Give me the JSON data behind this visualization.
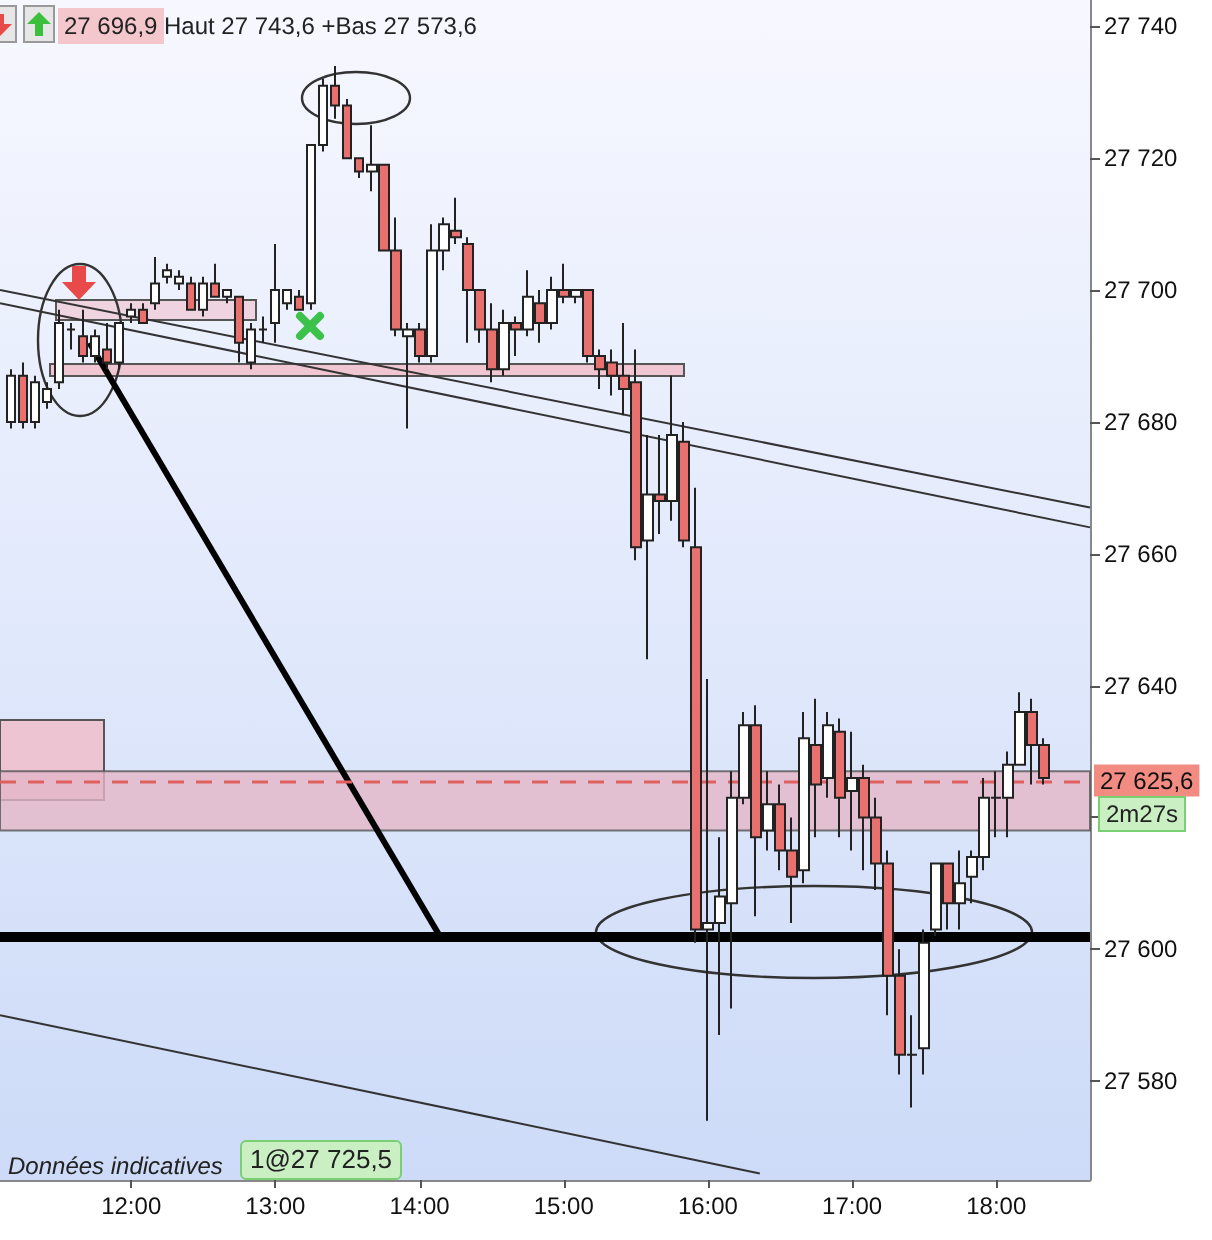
{
  "chart_data": {
    "type": "candlestick",
    "annotations": [
      "27 696,9",
      "Haut 27 743,6 +Bas 27 573,6",
      "Données indicatives",
      "1@27 725,5",
      "2m27s"
    ],
    "x": [
      11.1667,
      11.25,
      11.3333,
      11.4167,
      11.5,
      11.5833,
      11.6667,
      11.75,
      11.8333,
      11.9167,
      12,
      12.0833,
      12.1667,
      12.25,
      12.3333,
      12.4167,
      12.5,
      12.5833,
      12.6667,
      12.75,
      12.8333,
      12.9167,
      13,
      13.0833,
      13.1667,
      13.25,
      13.3333,
      13.4167,
      13.5,
      13.5833,
      13.6667,
      13.75,
      13.8333,
      13.9167,
      14,
      14.0833,
      14.1667,
      14.25,
      14.3333,
      14.4167,
      14.5,
      14.5833,
      14.6667,
      14.75,
      14.8333,
      14.9167,
      15,
      15.0833,
      15.1667,
      15.25,
      15.3333,
      15.4167,
      15.5,
      15.5833,
      15.6667,
      15.75,
      15.8333,
      15.9167,
      16,
      16.0833,
      16.1667,
      16.25,
      16.3333,
      16.4167,
      16.5,
      16.5833,
      16.6667,
      16.75,
      16.8333,
      16.9167,
      17,
      17.0833,
      17.1667,
      17.25,
      17.3333,
      17.4167,
      17.5,
      17.5833,
      17.6667,
      17.75,
      17.8333,
      17.9167,
      18,
      18.0833,
      18.1667,
      18.25,
      18.3333
    ],
    "ohlc": [
      [
        27680,
        27688,
        27679,
        27687
      ],
      [
        27687,
        27689,
        27679,
        27680
      ],
      [
        27680,
        27687,
        27679,
        27686
      ],
      [
        27683,
        27686,
        27682,
        27685
      ],
      [
        27686,
        27697,
        27685,
        27695
      ],
      [
        27694,
        27695,
        27691,
        27694
      ],
      [
        27693,
        27697,
        27689,
        27690
      ],
      [
        27690,
        27694,
        27689,
        27693
      ],
      [
        27691,
        27695,
        27688,
        27689
      ],
      [
        27689,
        27695,
        27688,
        27695
      ],
      [
        27696,
        27698,
        27695,
        27697
      ],
      [
        27697,
        27698,
        27695,
        27695
      ],
      [
        27698,
        27705,
        27697,
        27701
      ],
      [
        27702,
        27704,
        27701,
        27703
      ],
      [
        27701,
        27703,
        27700,
        27702
      ],
      [
        27701,
        27702,
        27697,
        27697
      ],
      [
        27697,
        27702,
        27696,
        27701
      ],
      [
        27701,
        27704,
        27699,
        27699
      ],
      [
        27699,
        27700,
        27698,
        27700
      ],
      [
        27699,
        27699,
        27689,
        27692
      ],
      [
        27689,
        27695,
        27688,
        27694
      ],
      [
        27694,
        27696,
        27692,
        27694
      ],
      [
        27695,
        27707,
        27692,
        27700
      ],
      [
        27698,
        27700,
        27697,
        27700
      ],
      [
        27699,
        27700,
        27697,
        27697
      ],
      [
        27698,
        27722,
        27697,
        27722
      ],
      [
        27722,
        27732,
        27721,
        27731
      ],
      [
        27731,
        27734,
        27726,
        27728
      ],
      [
        27728,
        27729,
        27720,
        27720
      ],
      [
        27720,
        27720,
        27717,
        27718
      ],
      [
        27718,
        27725,
        27715,
        27719
      ],
      [
        27719,
        27719,
        27706,
        27706
      ],
      [
        27706,
        27711,
        27693,
        27694
      ],
      [
        27693,
        27695,
        27679,
        27694
      ],
      [
        27694,
        27695,
        27689,
        27690
      ],
      [
        27690,
        27710,
        27689,
        27706
      ],
      [
        27706,
        27711,
        27703,
        27710
      ],
      [
        27709,
        27714,
        27707,
        27708
      ],
      [
        27707,
        27708,
        27692,
        27700
      ],
      [
        27700,
        27700,
        27692,
        27694
      ],
      [
        27694,
        27698,
        27686,
        27688
      ],
      [
        27688,
        27697,
        27687,
        27695
      ],
      [
        27695,
        27696,
        27690,
        27694
      ],
      [
        27694,
        27703,
        27693,
        27699
      ],
      [
        27698,
        27700,
        27692,
        27695
      ],
      [
        27695,
        27702,
        27694,
        27700
      ],
      [
        27700,
        27704,
        27698,
        27699
      ],
      [
        27699,
        27700,
        27698,
        27700
      ],
      [
        27700,
        27700,
        27689,
        27690
      ],
      [
        27690,
        27691,
        27685,
        27688
      ],
      [
        27689,
        27691,
        27684,
        27687
      ],
      [
        27687,
        27695,
        27681,
        27685
      ],
      [
        27686,
        27691,
        27659,
        27661
      ],
      [
        27662,
        27678,
        27644,
        27669
      ],
      [
        27669,
        27678,
        27663,
        27668
      ],
      [
        27668,
        27687,
        27665,
        27678
      ],
      [
        27677,
        27680,
        27661,
        27662
      ],
      [
        27661,
        27670,
        27601,
        27603
      ],
      [
        27603,
        27641,
        27574,
        27604
      ],
      [
        27604,
        27617,
        27587,
        27608
      ],
      [
        27607,
        27627,
        27591,
        27623
      ],
      [
        27623,
        27636,
        27622,
        27634
      ],
      [
        27634,
        27637,
        27605,
        27617
      ],
      [
        27618,
        27627,
        27615,
        27622
      ],
      [
        27622,
        27625,
        27612,
        27615
      ],
      [
        27615,
        27620,
        27604,
        27611
      ],
      [
        27612,
        27636,
        27610,
        27632
      ],
      [
        27631,
        27638,
        27617,
        27625
      ],
      [
        27626,
        27636,
        27623,
        27634
      ],
      [
        27633,
        27635,
        27617,
        27623
      ],
      [
        27624,
        27633,
        27615,
        27626
      ],
      [
        27626,
        27628,
        27612,
        27620
      ],
      [
        27620,
        27623,
        27609,
        27613
      ],
      [
        27613,
        27615,
        27590,
        27596
      ],
      [
        27596,
        27600,
        27581,
        27584
      ],
      [
        27584,
        27590,
        27576,
        27584
      ],
      [
        27585,
        27603,
        27581,
        27601
      ],
      [
        27603,
        27613,
        27602,
        27613
      ],
      [
        27613,
        27613,
        27603,
        27607
      ],
      [
        27607,
        27615,
        27603,
        27610
      ],
      [
        27611,
        27615,
        27607,
        27614
      ],
      [
        27614,
        27626,
        27612,
        27623
      ],
      [
        27623,
        27627,
        27617,
        27623
      ],
      [
        27623,
        27630,
        27617,
        27628
      ],
      [
        27628,
        27639,
        27628,
        27636
      ],
      [
        27636,
        27638,
        27625,
        27631
      ],
      [
        27631,
        27632,
        27625,
        27626
      ]
    ],
    "colors": [
      "#ffffff",
      "#e8706f",
      "#ffffff",
      "#ffffff",
      "#ffffff",
      "#222222",
      "#e8706f",
      "#ffffff",
      "#e8706f",
      "#ffffff",
      "#ffffff",
      "#e8706f",
      "#ffffff",
      "#ffffff",
      "#ffffff",
      "#e8706f",
      "#ffffff",
      "#e8706f",
      "#ffffff",
      "#e8706f",
      "#ffffff",
      "#222222",
      "#ffffff",
      "#ffffff",
      "#e8706f",
      "#ffffff",
      "#ffffff",
      "#e8706f",
      "#e8706f",
      "#e8706f",
      "#ffffff",
      "#e8706f",
      "#e8706f",
      "#ffffff",
      "#e8706f",
      "#ffffff",
      "#ffffff",
      "#e8706f",
      "#e8706f",
      "#e8706f",
      "#e8706f",
      "#ffffff",
      "#e8706f",
      "#ffffff",
      "#e8706f",
      "#ffffff",
      "#e8706f",
      "#ffffff",
      "#e8706f",
      "#e8706f",
      "#e8706f",
      "#e8706f",
      "#e8706f",
      "#ffffff",
      "#e8706f",
      "#ffffff",
      "#e8706f",
      "#e8706f",
      "#ffffff",
      "#ffffff",
      "#ffffff",
      "#ffffff",
      "#e8706f",
      "#ffffff",
      "#e8706f",
      "#e8706f",
      "#ffffff",
      "#e8706f",
      "#ffffff",
      "#e8706f",
      "#ffffff",
      "#e8706f",
      "#e8706f",
      "#e8706f",
      "#e8706f",
      "#222222",
      "#ffffff",
      "#ffffff",
      "#e8706f",
      "#ffffff",
      "#ffffff",
      "#ffffff",
      "#222222",
      "#ffffff",
      "#ffffff",
      "#e8706f",
      "#e8706f"
    ],
    "series": [
      {
        "type": "line",
        "color": "#333333",
        "x": [
          11.09,
          18.65
        ],
        "values": [
          27700,
          27667
        ]
      },
      {
        "type": "line",
        "color": "#333333",
        "x": [
          11.09,
          18.65
        ],
        "values": [
          27698,
          27664
        ]
      },
      {
        "type": "line",
        "color": "#333333",
        "x": [
          11.09,
          16.36
        ],
        "values": [
          27590,
          27566
        ]
      },
      {
        "type": "line",
        "color": "#000000",
        "x": [
          11.71,
          14.14
        ],
        "values": [
          27692,
          27602
        ]
      }
    ],
    "marker": "none",
    "xlim": [
      11.09,
      18.65
    ],
    "xticks": [
      {
        "value": 12,
        "label": "12:00"
      },
      {
        "value": 13,
        "label": "13:00"
      },
      {
        "value": 14,
        "label": "14:00"
      },
      {
        "value": 15,
        "label": "15:00"
      },
      {
        "value": 16,
        "label": "16:00"
      },
      {
        "value": 17,
        "label": "17:00"
      },
      {
        "value": 18,
        "label": "18:00"
      }
    ],
    "ylim": [
      27565,
      27744
    ],
    "yticks": [
      {
        "value": 27580,
        "label": "27 580"
      },
      {
        "value": 27600,
        "label": "27 600"
      },
      {
        "value": 27620,
        "label": null
      },
      {
        "value": 27640,
        "label": "27 640"
      },
      {
        "value": 27660,
        "label": "27 660"
      },
      {
        "value": 27680,
        "label": "27 680"
      },
      {
        "value": 27700,
        "label": "27 700"
      },
      {
        "value": 27720,
        "label": "27 720"
      },
      {
        "value": 27740,
        "label": "27 740"
      }
    ],
    "ref_lines": [
      {
        "axis": "y",
        "value": 27625.6,
        "label": "27 625,6",
        "color": "#e06060",
        "line_style": "dashed"
      },
      {
        "axis": "y",
        "value": 27602,
        "label": null,
        "color": "#000000",
        "line_style": "solid"
      }
    ],
    "bands": [
      {
        "axis": "y",
        "from": 27618,
        "to": 27627,
        "label": null,
        "color": "#e3b6c8"
      }
    ],
    "grid": false
  }
}
